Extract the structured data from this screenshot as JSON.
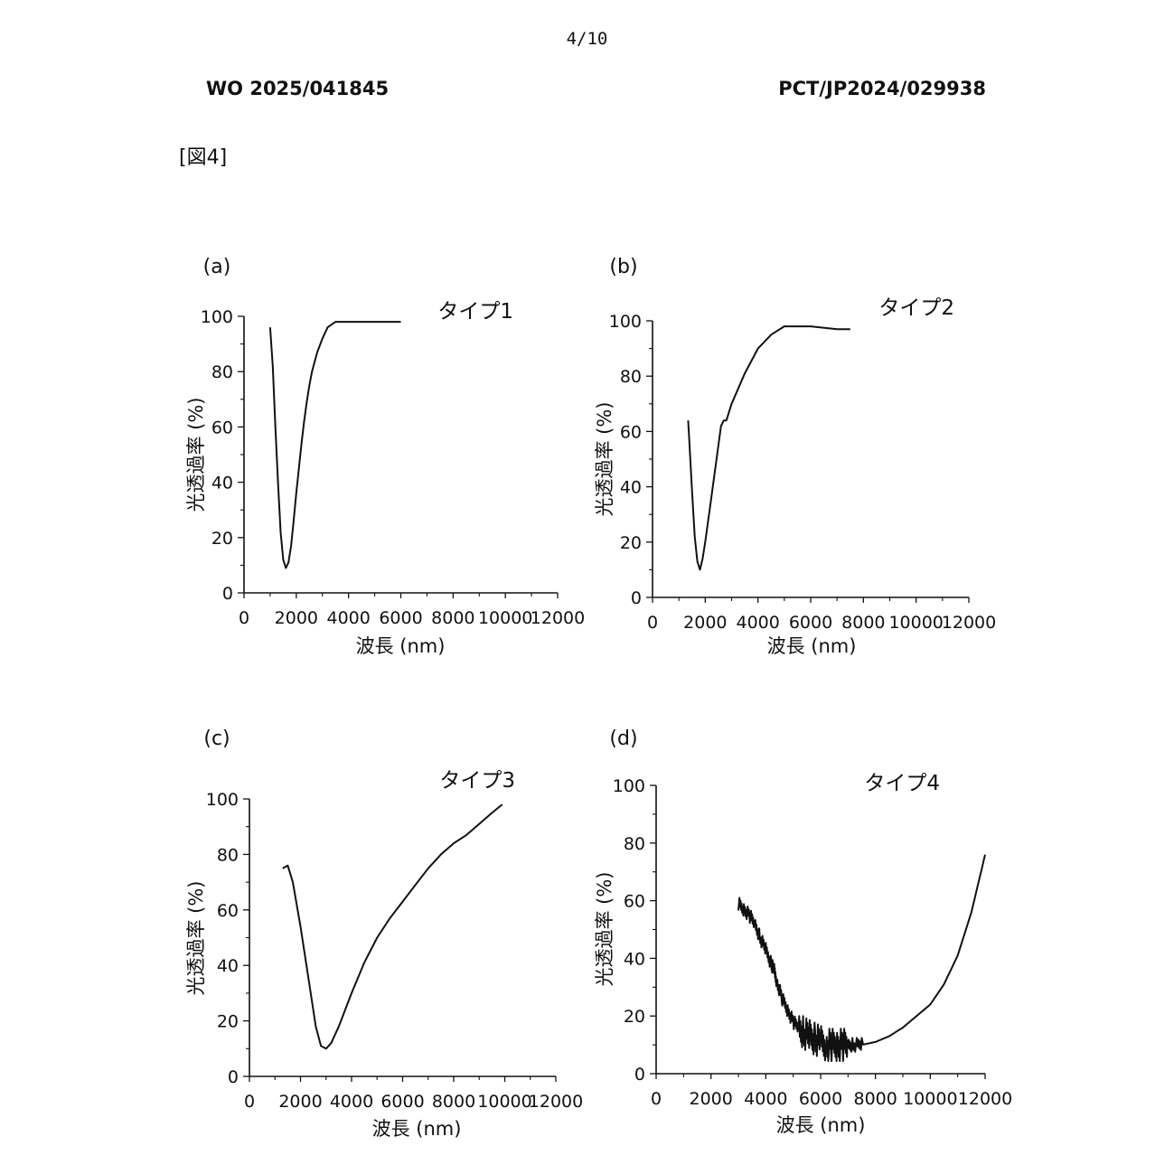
{
  "header": {
    "page_number": "4/10",
    "publication_number": "WO 2025/041845",
    "application_number": "PCT/JP2024/029938",
    "figure_label": "[図4]"
  },
  "chart_data": [
    {
      "panel": "(a)",
      "type": "line",
      "title": "タイプ1",
      "xlabel": "波長 (nm)",
      "ylabel": "光透過率 (%)",
      "xlim": [
        0,
        12000
      ],
      "ylim": [
        0,
        100
      ],
      "xticks": [
        "0",
        "2000",
        "4000",
        "6000",
        "8000",
        "10000",
        "12000"
      ],
      "yticks": [
        "0",
        "20",
        "40",
        "60",
        "80",
        "100"
      ],
      "x": [
        1000,
        1100,
        1200,
        1300,
        1400,
        1500,
        1600,
        1700,
        1800,
        1900,
        2000,
        2100,
        2200,
        2300,
        2400,
        2500,
        2600,
        2800,
        3000,
        3200,
        3500,
        4000,
        5000,
        6000
      ],
      "y": [
        96,
        82,
        60,
        40,
        22,
        12,
        9,
        11,
        17,
        26,
        36,
        45,
        54,
        62,
        69,
        75,
        80,
        87,
        92,
        96,
        98,
        98,
        98,
        98
      ]
    },
    {
      "panel": "(b)",
      "type": "line",
      "title": "タイプ2",
      "xlabel": "波長 (nm)",
      "ylabel": "光透過率 (%)",
      "xlim": [
        0,
        12000
      ],
      "ylim": [
        0,
        100
      ],
      "xticks": [
        "0",
        "2000",
        "4000",
        "6000",
        "8000",
        "10000",
        "12000"
      ],
      "yticks": [
        "0",
        "20",
        "40",
        "60",
        "80",
        "100"
      ],
      "x": [
        1350,
        1400,
        1500,
        1600,
        1700,
        1800,
        1900,
        2000,
        2200,
        2400,
        2600,
        2700,
        2800,
        3000,
        3500,
        4000,
        4500,
        5000,
        5500,
        6000,
        7000,
        7500
      ],
      "y": [
        64,
        56,
        38,
        22,
        13,
        10,
        14,
        20,
        34,
        48,
        62,
        64,
        64,
        70,
        81,
        90,
        95,
        98,
        98,
        98,
        97,
        97
      ]
    },
    {
      "panel": "(c)",
      "type": "line",
      "title": "タイプ3",
      "xlabel": "波長 (nm)",
      "ylabel": "光透過率 (%)",
      "xlim": [
        0,
        12000
      ],
      "ylim": [
        0,
        100
      ],
      "xticks": [
        "0",
        "2000",
        "4000",
        "6000",
        "8000",
        "10000",
        "12000"
      ],
      "yticks": [
        "0",
        "20",
        "40",
        "60",
        "80",
        "100"
      ],
      "x": [
        1300,
        1500,
        1700,
        2000,
        2300,
        2600,
        2800,
        3000,
        3200,
        3500,
        4000,
        4500,
        5000,
        5500,
        6000,
        6500,
        7000,
        7500,
        8000,
        8500,
        9000,
        9500,
        9900
      ],
      "y": [
        75,
        76,
        70,
        54,
        36,
        18,
        11,
        10,
        12,
        18,
        30,
        41,
        50,
        57,
        63,
        69,
        75,
        80,
        84,
        87,
        91,
        95,
        98
      ]
    },
    {
      "panel": "(d)",
      "type": "line",
      "title": "タイプ4",
      "xlabel": "波長 (nm)",
      "ylabel": "光透過率 (%)",
      "xlim": [
        0,
        12000
      ],
      "ylim": [
        0,
        100
      ],
      "xticks": [
        "0",
        "2000",
        "4000",
        "6000",
        "8000",
        "10000",
        "12000"
      ],
      "yticks": [
        "0",
        "20",
        "40",
        "60",
        "80",
        "100"
      ],
      "x": [
        3000,
        3200,
        3400,
        3600,
        3800,
        4000,
        4200,
        4300,
        4400,
        4600,
        4800,
        5000,
        5200,
        5400,
        5600,
        5800,
        6000,
        6200,
        6400,
        6600,
        6800,
        7000,
        7200,
        7500,
        8000,
        8500,
        9000,
        9500,
        10000,
        10500,
        11000,
        11500,
        12000
      ],
      "y": [
        59,
        57,
        55,
        52,
        47,
        43,
        38,
        36,
        32,
        26,
        22,
        18,
        16,
        14,
        13,
        12,
        11,
        10,
        10,
        10,
        10,
        10,
        10,
        10,
        11,
        13,
        16,
        20,
        24,
        31,
        41,
        56,
        76
      ],
      "noise_range": [
        3000,
        7500
      ],
      "noise_amplitude": 4
    }
  ]
}
